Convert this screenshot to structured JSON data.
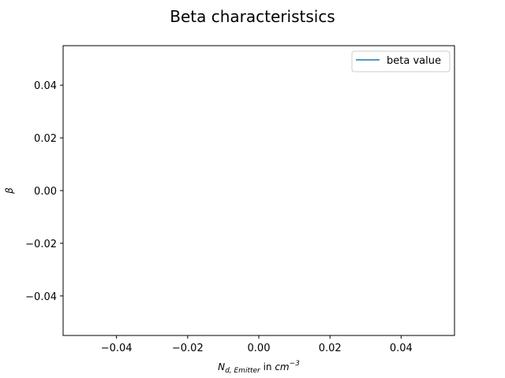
{
  "chart_data": {
    "type": "line",
    "title": "Beta characteristsics",
    "xlabel": {
      "main": "N",
      "sub": "d, Emitter",
      "mid": " in ",
      "unit": "cm",
      "sup": "−3"
    },
    "ylabel": "β",
    "xlim": [
      -0.055,
      0.055
    ],
    "ylim": [
      -0.055,
      0.055
    ],
    "xticks": [
      {
        "value": -0.04,
        "label": "−0.04"
      },
      {
        "value": -0.02,
        "label": "−0.02"
      },
      {
        "value": 0.0,
        "label": "0.00"
      },
      {
        "value": 0.02,
        "label": "0.02"
      },
      {
        "value": 0.04,
        "label": "0.04"
      }
    ],
    "yticks": [
      {
        "value": 0.04,
        "label": "0.04"
      },
      {
        "value": 0.02,
        "label": "0.02"
      },
      {
        "value": 0.0,
        "label": "0.00"
      },
      {
        "value": -0.02,
        "label": "−0.02"
      },
      {
        "value": -0.04,
        "label": "−0.04"
      }
    ],
    "grid": false,
    "legend_position": "top-right",
    "series": [
      {
        "name": "beta value",
        "color": "#1f77b4",
        "x": [],
        "y": []
      }
    ]
  }
}
